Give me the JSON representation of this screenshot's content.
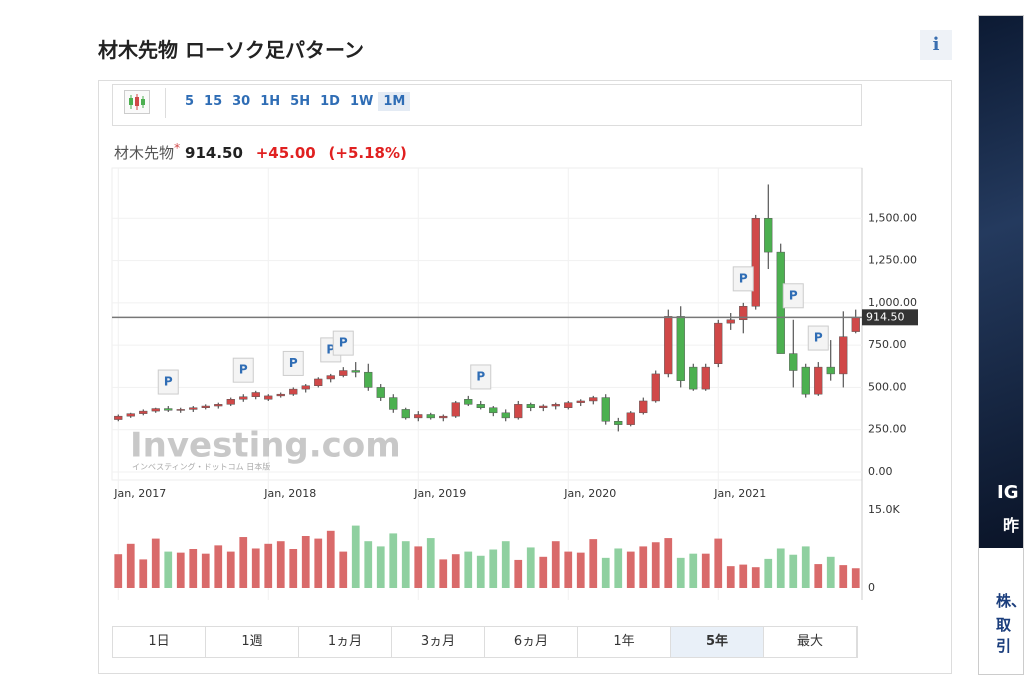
{
  "header": {
    "title": "材木先物 ローソク足パターン",
    "info": "i"
  },
  "toolbar": {
    "intervals": [
      "5",
      "15",
      "30",
      "1H",
      "5H",
      "1D",
      "1W",
      "1M"
    ],
    "active": "1M"
  },
  "quote": {
    "name": "材木先物",
    "marker": "*",
    "change": "+45.00",
    "change_pct": "(+5.18%)"
  },
  "chart_data": {
    "type": "candlestick",
    "watermark": "Investing.com",
    "watermark_sub": "インベスティング・ドットコム 日本版",
    "up_color": "#d04848",
    "down_color": "#4cb050",
    "up_volume_color": "#d96a6a",
    "down_volume_color": "#8fd0a0",
    "xlim": [
      -0.5,
      59.5
    ],
    "xticks": [
      {
        "value": 0,
        "label": "Jan, 2017"
      },
      {
        "value": 12,
        "label": "Jan, 2018"
      },
      {
        "value": 24,
        "label": "Jan, 2019"
      },
      {
        "value": 36,
        "label": "Jan, 2020"
      },
      {
        "value": 48,
        "label": "Jan, 2021"
      }
    ],
    "ylim": [
      0,
      1750
    ],
    "yticks": [
      {
        "value": 0,
        "label": "0.00"
      },
      {
        "value": 250,
        "label": "250.00"
      },
      {
        "value": 500,
        "label": "500.00"
      },
      {
        "value": 750,
        "label": "750.00"
      },
      {
        "value": 1000,
        "label": "1,000.00"
      },
      {
        "value": 1250,
        "label": "1,250.00"
      },
      {
        "value": 1500,
        "label": "1,500.00"
      }
    ],
    "vlim": [
      0,
      15000
    ],
    "vticks": [
      0,
      {
        "value": 15000,
        "label": "15.0K"
      }
    ],
    "last": {
      "value": 914.5,
      "label": "914.50"
    },
    "open": [
      310,
      330,
      345,
      360,
      375,
      365,
      370,
      380,
      390,
      400,
      430,
      445,
      430,
      450,
      460,
      490,
      510,
      550,
      570,
      600,
      590,
      500,
      440,
      370,
      320,
      340,
      320,
      330,
      430,
      400,
      380,
      350,
      320,
      400,
      380,
      390,
      380,
      410,
      420,
      440,
      300,
      280,
      350,
      420,
      580,
      920,
      620,
      490,
      640,
      880,
      900,
      980,
      1500,
      1300,
      700,
      620,
      460,
      620,
      580,
      830
    ],
    "high": [
      340,
      350,
      370,
      380,
      390,
      380,
      390,
      400,
      410,
      440,
      460,
      480,
      460,
      470,
      500,
      520,
      560,
      580,
      620,
      650,
      640,
      520,
      460,
      380,
      360,
      350,
      340,
      420,
      450,
      420,
      390,
      370,
      420,
      410,
      400,
      410,
      420,
      430,
      450,
      460,
      320,
      360,
      440,
      600,
      960,
      980,
      640,
      640,
      900,
      940,
      1000,
      1520,
      1700,
      1350,
      900,
      640,
      650,
      780,
      950,
      960
    ],
    "low": [
      300,
      320,
      335,
      350,
      355,
      350,
      355,
      370,
      375,
      390,
      415,
      430,
      420,
      440,
      450,
      470,
      500,
      530,
      560,
      560,
      480,
      420,
      350,
      310,
      300,
      310,
      300,
      320,
      390,
      370,
      330,
      300,
      310,
      360,
      360,
      370,
      370,
      390,
      400,
      280,
      240,
      270,
      340,
      410,
      560,
      500,
      480,
      480,
      620,
      840,
      820,
      960,
      1200,
      700,
      500,
      440,
      450,
      540,
      500,
      820
    ],
    "close": [
      330,
      345,
      360,
      375,
      365,
      370,
      380,
      390,
      400,
      430,
      445,
      470,
      450,
      460,
      490,
      510,
      550,
      570,
      600,
      590,
      500,
      440,
      370,
      320,
      340,
      320,
      330,
      410,
      400,
      380,
      350,
      320,
      400,
      380,
      390,
      400,
      410,
      420,
      440,
      300,
      280,
      350,
      420,
      580,
      920,
      540,
      490,
      620,
      880,
      900,
      980,
      1500,
      1300,
      700,
      600,
      460,
      620,
      580,
      800,
      914.5
    ],
    "volume": [
      6500,
      8500,
      5500,
      9500,
      7000,
      6800,
      7500,
      6600,
      8200,
      7000,
      9800,
      7600,
      8500,
      9000,
      7500,
      10000,
      9500,
      11000,
      7000,
      12000,
      9000,
      8000,
      10500,
      9000,
      8000,
      9600,
      5500,
      6500,
      7000,
      6200,
      7400,
      9000,
      5400,
      7800,
      6000,
      9000,
      7000,
      6800,
      9400,
      5800,
      7600,
      7000,
      8000,
      8800,
      9600,
      5800,
      6600,
      6600,
      9500,
      4200,
      4500,
      4000,
      5600,
      7600,
      6400,
      8000,
      4600,
      6000,
      4400,
      3800
    ],
    "markers": [
      {
        "index": 4,
        "label": "P"
      },
      {
        "index": 10,
        "label": "P"
      },
      {
        "index": 14,
        "label": "P"
      },
      {
        "index": 17,
        "label": "P"
      },
      {
        "index": 18,
        "label": "P"
      },
      {
        "index": 29,
        "label": "P"
      },
      {
        "index": 50,
        "label": "P"
      },
      {
        "index": 54,
        "label": "P"
      },
      {
        "index": 56,
        "label": "P"
      }
    ]
  },
  "range_buttons": {
    "items": [
      "1日",
      "1週",
      "1ヵ月",
      "3ヵ月",
      "6ヵ月",
      "1年",
      "5年",
      "最大"
    ],
    "active": "5年"
  },
  "ad": {
    "line1": "IG",
    "line2": "昨",
    "line3": "株、",
    "line4": "取引"
  }
}
